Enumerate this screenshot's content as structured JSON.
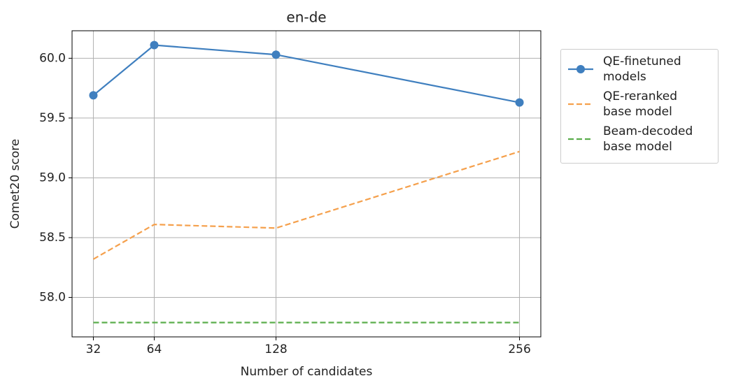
{
  "chart_data": {
    "type": "line",
    "title": "en-de",
    "x_label": "Number of candidates",
    "y_label": "Comet20 score",
    "x": [
      32,
      64,
      128,
      256
    ],
    "series": [
      {
        "name": "QE-finetuned models",
        "color": "#3f7fbf",
        "linestyle": "solid",
        "marker": "o",
        "values": [
          59.69,
          60.11,
          60.03,
          59.63
        ]
      },
      {
        "name": "QE-reranked base model",
        "color": "#f5a04c",
        "linestyle": "dashed",
        "marker": "none",
        "values": [
          58.32,
          58.61,
          58.58,
          59.22
        ]
      },
      {
        "name": "Beam-decoded base model",
        "color": "#5aad4b",
        "linestyle": "dashed",
        "marker": "none",
        "values": [
          57.79,
          57.79,
          57.79,
          57.79
        ]
      }
    ],
    "xlim": [
      20.8,
      267.2
    ],
    "ylim": [
      57.67,
      60.23
    ],
    "xticks": [
      32,
      64,
      128,
      256
    ],
    "yticks": [
      {
        "value": 58,
        "label": "58.0"
      },
      58.5,
      {
        "value": 59,
        "label": "59.0"
      },
      59.5,
      {
        "value": 60,
        "label": "60.0"
      }
    ],
    "grid": true,
    "legend": "outside-right"
  }
}
